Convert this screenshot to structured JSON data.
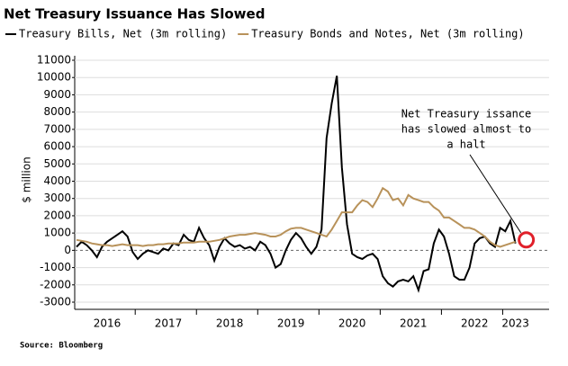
{
  "chart_data": {
    "type": "line",
    "title": "Net Treasury Issuance Has Slowed",
    "y_label": "$ million",
    "source": "Source: Bloomberg",
    "annotation": [
      "Net Treasury issance",
      "has slowed almost to",
      "a halt"
    ],
    "categories": [
      null,
      null,
      null,
      null,
      null,
      null,
      "2016",
      null,
      null,
      null,
      null,
      null,
      null,
      null,
      null,
      null,
      null,
      null,
      "2017",
      null,
      null,
      null,
      null,
      null,
      null,
      null,
      null,
      null,
      null,
      null,
      "2018",
      null,
      null,
      null,
      null,
      null,
      null,
      null,
      null,
      null,
      null,
      null,
      "2019",
      null,
      null,
      null,
      null,
      null,
      null,
      null,
      null,
      null,
      null,
      null,
      "2020",
      null,
      null,
      null,
      null,
      null,
      null,
      null,
      null,
      null,
      null,
      null,
      "2021",
      null,
      null,
      null,
      null,
      null,
      null,
      null,
      null,
      null,
      null,
      null,
      "2022",
      null,
      null,
      null,
      null,
      null,
      null,
      null,
      "2023"
    ],
    "series": [
      {
        "name": "Treasury Bills, Net (3m rolling)",
        "color": "#000000",
        "values": [
          200,
          500,
          300,
          0,
          -400,
          200,
          500,
          700,
          900,
          1100,
          800,
          -100,
          -500,
          -200,
          0,
          -100,
          -200,
          100,
          0,
          400,
          300,
          900,
          600,
          500,
          1300,
          700,
          300,
          -600,
          200,
          700,
          400,
          200,
          300,
          100,
          200,
          0,
          500,
          300,
          -200,
          -1000,
          -800,
          0,
          600,
          1000,
          700,
          200,
          -200,
          200,
          1200,
          6500,
          8500,
          10100,
          4800,
          1500,
          -200,
          -400,
          -500,
          -300,
          -200,
          -500,
          -1500,
          -1900,
          -2100,
          -1800,
          -1700,
          -1800,
          -1500,
          -2300,
          -1200,
          -1100,
          400,
          1200,
          800,
          -200,
          -1500,
          -1700,
          -1700,
          -1000,
          400,
          700,
          800,
          400,
          200,
          1300,
          1100,
          1700,
          400
        ]
      },
      {
        "name": "Treasury Bonds and Notes, Net (3m rolling)",
        "color": "#b8925a",
        "values": [
          600,
          550,
          500,
          400,
          350,
          300,
          300,
          250,
          300,
          350,
          300,
          300,
          300,
          250,
          300,
          300,
          350,
          350,
          400,
          400,
          400,
          450,
          450,
          450,
          500,
          500,
          500,
          550,
          600,
          700,
          800,
          850,
          900,
          900,
          950,
          1000,
          950,
          900,
          800,
          800,
          900,
          1100,
          1250,
          1300,
          1300,
          1200,
          1100,
          1000,
          900,
          800,
          1200,
          1700,
          2200,
          2200,
          2200,
          2600,
          2900,
          2800,
          2500,
          3000,
          3600,
          3400,
          2900,
          3000,
          2600,
          3200,
          3000,
          2900,
          2800,
          2800,
          2500,
          2300,
          1900,
          1900,
          1700,
          1500,
          1300,
          1300,
          1200,
          1000,
          800,
          500,
          300,
          200,
          300,
          400,
          500
        ]
      }
    ],
    "ylim": [
      -3000,
      11000
    ],
    "yticks": [
      -3000,
      -2000,
      -1000,
      0,
      1000,
      2000,
      3000,
      4000,
      5000,
      6000,
      7000,
      8000,
      9000,
      10000,
      11000
    ],
    "grid": true,
    "highlight_color": "#e0202a"
  }
}
